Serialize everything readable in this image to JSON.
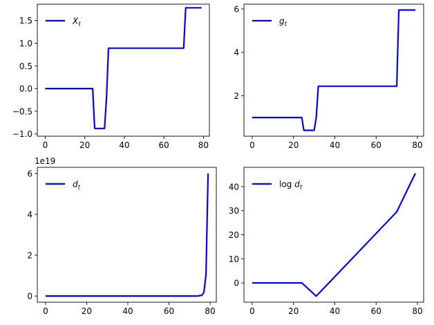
{
  "figure": {
    "background": "#ffffff",
    "line_color": "#0000ff"
  },
  "chart_data": [
    {
      "type": "line",
      "series": [
        {
          "name": "X_t",
          "name_display": [
            "X",
            "t"
          ],
          "x": [
            0,
            24,
            25,
            30,
            31,
            32,
            70,
            71,
            79
          ],
          "y": [
            0,
            0,
            -0.88,
            -0.88,
            -0.18,
            0.89,
            0.89,
            1.78,
            1.78
          ]
        }
      ],
      "xlim": [
        -4,
        83
      ],
      "ylim": [
        -1.05,
        1.86
      ],
      "xticks": [
        0,
        20,
        40,
        60,
        80
      ],
      "xtick_labels": [
        "0",
        "20",
        "40",
        "60",
        "80"
      ],
      "yticks": [
        -1.0,
        -0.5,
        0.0,
        0.5,
        1.0,
        1.5
      ],
      "ytick_labels": [
        "−1.0",
        "−0.5",
        "0.0",
        "0.5",
        "1.0",
        "1.5"
      ],
      "legend_loc": "upper-left",
      "grid": false
    },
    {
      "type": "line",
      "series": [
        {
          "name": "g_t",
          "name_display": [
            "g",
            "t"
          ],
          "x": [
            0,
            24,
            25,
            30,
            31,
            32,
            70,
            71,
            79
          ],
          "y": [
            1,
            1,
            0.41,
            0.41,
            1.0,
            2.44,
            2.44,
            5.95,
            5.95
          ]
        }
      ],
      "xlim": [
        -4,
        83
      ],
      "ylim": [
        0.14,
        6.22
      ],
      "xticks": [
        0,
        20,
        40,
        60,
        80
      ],
      "xtick_labels": [
        "0",
        "20",
        "40",
        "60",
        "80"
      ],
      "yticks": [
        2,
        4,
        6
      ],
      "ytick_labels": [
        "2",
        "4",
        "6"
      ],
      "legend_loc": "upper-left",
      "grid": false
    },
    {
      "type": "line",
      "series": [
        {
          "name": "d_t",
          "name_display": [
            "d",
            "t"
          ],
          "x": [
            0,
            72,
            74,
            76,
            77,
            78,
            79
          ],
          "y": [
            0,
            0.0002,
            0.003,
            0.04,
            0.18,
            1.05,
            6.0
          ]
        }
      ],
      "offset_text": "1e19",
      "xlim": [
        -4,
        83
      ],
      "ylim": [
        -0.3,
        6.3
      ],
      "xticks": [
        0,
        20,
        40,
        60,
        80
      ],
      "xtick_labels": [
        "0",
        "20",
        "40",
        "60",
        "80"
      ],
      "yticks": [
        0,
        2,
        4,
        6
      ],
      "ytick_labels": [
        "0",
        "2",
        "4",
        "6"
      ],
      "legend_loc": "upper-left",
      "grid": false
    },
    {
      "type": "line",
      "series": [
        {
          "name": "log d_t",
          "name_display": [
            "log d",
            "t"
          ],
          "x": [
            0,
            24,
            31,
            70,
            79
          ],
          "y": [
            0,
            0,
            -5.5,
            29.5,
            45.5
          ]
        }
      ],
      "xlim": [
        -4,
        83
      ],
      "ylim": [
        -8,
        48
      ],
      "xticks": [
        0,
        20,
        40,
        60,
        80
      ],
      "xtick_labels": [
        "0",
        "20",
        "40",
        "60",
        "80"
      ],
      "yticks": [
        0,
        10,
        20,
        30,
        40
      ],
      "ytick_labels": [
        "0",
        "10",
        "20",
        "30",
        "40"
      ],
      "legend_loc": "upper-left",
      "grid": false
    }
  ]
}
